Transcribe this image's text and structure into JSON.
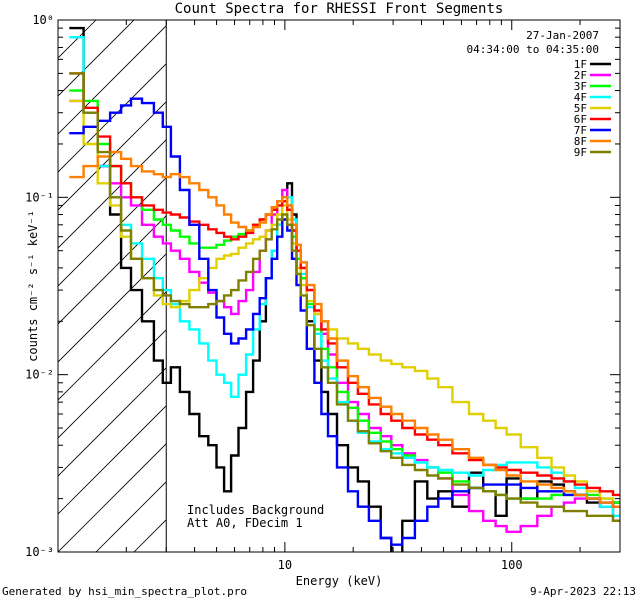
{
  "chart_data": {
    "type": "line",
    "title": "Count Spectra for RHESSI Front Segments",
    "xlabel": "Energy (keV)",
    "ylabel": "counts cm⁻² s⁻¹ keV⁻¹",
    "xscale": "log",
    "yscale": "log",
    "xlim": [
      1,
      300
    ],
    "ylim": [
      0.001,
      1
    ],
    "x_ticks": [
      {
        "value": 10,
        "label": "10"
      },
      {
        "value": 100,
        "label": "100"
      }
    ],
    "y_ticks": [
      {
        "value": 0.001,
        "label": "10⁻³"
      },
      {
        "value": 0.01,
        "label": "10⁻²"
      },
      {
        "value": 0.1,
        "label": "10⁻¹"
      },
      {
        "value": 1,
        "label": "10⁰"
      }
    ],
    "date": "27-Jan-2007",
    "time_range": "04:34:00 to 04:35:00",
    "annotations": [
      "Includes Background",
      "Att A0, FDecim 1"
    ],
    "attenuator_boundary_kev": 3,
    "legend_position": "top-right",
    "footer_left": "Generated by hsi_min_spectra_plot.pro",
    "footer_right": "9-Apr-2023 22:13",
    "series": [
      {
        "name": "1F",
        "color": "#000000",
        "x": [
          1.2,
          1.4,
          1.6,
          1.8,
          2.0,
          2.2,
          2.5,
          2.8,
          3.0,
          3.3,
          3.6,
          4.0,
          4.4,
          4.8,
          5.2,
          5.6,
          6.0,
          6.5,
          7.0,
          7.5,
          8.0,
          8.5,
          9.0,
          9.5,
          10.0,
          10.5,
          11.0,
          11.5,
          12,
          13,
          14,
          15,
          16,
          18,
          20,
          22,
          25,
          28,
          31,
          35,
          40,
          45,
          50,
          60,
          70,
          80,
          90,
          100,
          120,
          140,
          160,
          180,
          200,
          230,
          260,
          300
        ],
        "y": [
          0.9,
          0.3,
          0.15,
          0.08,
          0.04,
          0.03,
          0.02,
          0.012,
          0.009,
          0.011,
          0.008,
          0.006,
          0.0045,
          0.004,
          0.003,
          0.0022,
          0.0035,
          0.005,
          0.008,
          0.012,
          0.02,
          0.035,
          0.05,
          0.07,
          0.1,
          0.12,
          0.08,
          0.05,
          0.035,
          0.02,
          0.012,
          0.008,
          0.006,
          0.004,
          0.003,
          0.0025,
          0.0018,
          0.0012,
          0.0009,
          0.0015,
          0.0025,
          0.002,
          0.0022,
          0.0018,
          0.0028,
          0.0022,
          0.0016,
          0.0026,
          0.002,
          0.0025,
          0.0024,
          0.0022,
          0.0021,
          0.0019,
          0.0018,
          0.0019
        ]
      },
      {
        "name": "2F",
        "color": "#ff00ff",
        "x": [
          1.2,
          1.4,
          1.6,
          1.8,
          2.0,
          2.2,
          2.5,
          2.8,
          3.0,
          3.3,
          3.6,
          4.0,
          4.4,
          4.8,
          5.2,
          5.6,
          6.0,
          6.5,
          7.0,
          7.5,
          8.0,
          8.5,
          9.0,
          9.5,
          10.0,
          10.5,
          11.0,
          11.5,
          12,
          13,
          14,
          15,
          16,
          18,
          20,
          22,
          25,
          28,
          31,
          35,
          40,
          45,
          50,
          60,
          70,
          80,
          90,
          100,
          120,
          140,
          160,
          180,
          200,
          230,
          260,
          300
        ],
        "y": [
          0.35,
          0.3,
          0.15,
          0.12,
          0.1,
          0.09,
          0.07,
          0.06,
          0.055,
          0.05,
          0.045,
          0.038,
          0.033,
          0.029,
          0.026,
          0.024,
          0.022,
          0.026,
          0.03,
          0.038,
          0.05,
          0.065,
          0.08,
          0.095,
          0.11,
          0.09,
          0.065,
          0.05,
          0.04,
          0.03,
          0.022,
          0.017,
          0.013,
          0.009,
          0.007,
          0.006,
          0.005,
          0.0045,
          0.004,
          0.0036,
          0.0033,
          0.003,
          0.0026,
          0.0021,
          0.0017,
          0.0015,
          0.0014,
          0.0013,
          0.0014,
          0.0016,
          0.0018,
          0.0019,
          0.002,
          0.002,
          0.0018,
          0.0015
        ]
      },
      {
        "name": "3F",
        "color": "#00ff00",
        "x": [
          1.2,
          1.4,
          1.6,
          1.8,
          2.0,
          2.2,
          2.5,
          2.8,
          3.0,
          3.3,
          3.6,
          4.0,
          4.4,
          4.8,
          5.2,
          5.6,
          6.0,
          6.5,
          7.0,
          7.5,
          8.0,
          8.5,
          9.0,
          9.5,
          10.0,
          10.5,
          11.0,
          11.5,
          12,
          13,
          14,
          15,
          16,
          18,
          20,
          22,
          25,
          28,
          31,
          35,
          40,
          45,
          50,
          60,
          70,
          80,
          90,
          100,
          120,
          140,
          160,
          180,
          200,
          230,
          260,
          300
        ],
        "y": [
          0.4,
          0.35,
          0.2,
          0.15,
          0.12,
          0.1,
          0.085,
          0.075,
          0.07,
          0.065,
          0.06,
          0.055,
          0.052,
          0.052,
          0.054,
          0.057,
          0.06,
          0.062,
          0.065,
          0.07,
          0.075,
          0.08,
          0.085,
          0.09,
          0.095,
          0.085,
          0.06,
          0.045,
          0.035,
          0.025,
          0.018,
          0.014,
          0.011,
          0.008,
          0.0065,
          0.0055,
          0.0047,
          0.0042,
          0.0038,
          0.0035,
          0.0032,
          0.003,
          0.0028,
          0.0025,
          0.0023,
          0.0022,
          0.0021,
          0.002,
          0.002,
          0.002,
          0.0021,
          0.0021,
          0.0021,
          0.0021,
          0.002,
          0.0019
        ]
      },
      {
        "name": "4F",
        "color": "#00ffff",
        "x": [
          1.2,
          1.4,
          1.6,
          1.8,
          2.0,
          2.2,
          2.5,
          2.8,
          3.0,
          3.3,
          3.6,
          4.0,
          4.4,
          4.8,
          5.2,
          5.6,
          6.0,
          6.5,
          7.0,
          7.5,
          8.0,
          8.5,
          9.0,
          9.5,
          10.0,
          10.5,
          11.0,
          11.5,
          12,
          13,
          14,
          15,
          16,
          18,
          20,
          22,
          25,
          28,
          31,
          35,
          40,
          45,
          50,
          60,
          70,
          80,
          90,
          100,
          120,
          140,
          160,
          180,
          200,
          230,
          260,
          300
        ],
        "y": [
          0.8,
          0.3,
          0.15,
          0.1,
          0.07,
          0.055,
          0.045,
          0.035,
          0.03,
          0.025,
          0.02,
          0.018,
          0.015,
          0.012,
          0.01,
          0.009,
          0.0075,
          0.01,
          0.013,
          0.018,
          0.025,
          0.035,
          0.05,
          0.07,
          0.09,
          0.1,
          0.075,
          0.05,
          0.037,
          0.024,
          0.017,
          0.012,
          0.0095,
          0.007,
          0.0055,
          0.0047,
          0.0042,
          0.0038,
          0.0036,
          0.0034,
          0.0032,
          0.003,
          0.0029,
          0.0028,
          0.0027,
          0.0029,
          0.0031,
          0.0032,
          0.0032,
          0.003,
          0.0028,
          0.0025,
          0.0023,
          0.002,
          0.0018,
          0.0016
        ]
      },
      {
        "name": "5F",
        "color": "#e0d000",
        "x": [
          1.2,
          1.4,
          1.6,
          1.8,
          2.0,
          2.2,
          2.5,
          2.8,
          3.0,
          3.3,
          3.6,
          4.0,
          4.4,
          4.8,
          5.2,
          5.6,
          6.0,
          6.5,
          7.0,
          7.5,
          8.0,
          8.5,
          9.0,
          9.5,
          10.0,
          10.5,
          11.0,
          11.5,
          12,
          13,
          14,
          15,
          16,
          18,
          20,
          22,
          25,
          28,
          31,
          35,
          40,
          45,
          50,
          60,
          70,
          80,
          90,
          100,
          120,
          140,
          160,
          180,
          200,
          230,
          260,
          300
        ],
        "y": [
          0.35,
          0.2,
          0.12,
          0.09,
          0.06,
          0.045,
          0.035,
          0.028,
          0.025,
          0.024,
          0.026,
          0.03,
          0.035,
          0.04,
          0.045,
          0.047,
          0.048,
          0.052,
          0.055,
          0.058,
          0.06,
          0.065,
          0.07,
          0.08,
          0.09,
          0.075,
          0.055,
          0.04,
          0.032,
          0.026,
          0.022,
          0.02,
          0.018,
          0.016,
          0.015,
          0.014,
          0.013,
          0.012,
          0.0115,
          0.011,
          0.0105,
          0.0095,
          0.0085,
          0.007,
          0.006,
          0.0055,
          0.005,
          0.0046,
          0.0039,
          0.0034,
          0.003,
          0.0027,
          0.0025,
          0.0022,
          0.002,
          0.0018
        ]
      },
      {
        "name": "6F",
        "color": "#ff0000",
        "x": [
          1.2,
          1.4,
          1.6,
          1.8,
          2.0,
          2.2,
          2.5,
          2.8,
          3.0,
          3.3,
          3.6,
          4.0,
          4.4,
          4.8,
          5.2,
          5.6,
          6.0,
          6.5,
          7.0,
          7.5,
          8.0,
          8.5,
          9.0,
          9.5,
          10.0,
          10.5,
          11.0,
          11.5,
          12,
          13,
          14,
          15,
          16,
          18,
          20,
          22,
          25,
          28,
          31,
          35,
          40,
          45,
          50,
          60,
          70,
          80,
          90,
          100,
          120,
          140,
          160,
          180,
          200,
          230,
          260,
          300
        ],
        "y": [
          0.5,
          0.32,
          0.22,
          0.15,
          0.12,
          0.1,
          0.09,
          0.085,
          0.082,
          0.08,
          0.077,
          0.073,
          0.07,
          0.066,
          0.063,
          0.06,
          0.058,
          0.06,
          0.063,
          0.07,
          0.075,
          0.08,
          0.085,
          0.09,
          0.095,
          0.085,
          0.065,
          0.05,
          0.04,
          0.03,
          0.023,
          0.018,
          0.015,
          0.011,
          0.009,
          0.0078,
          0.0068,
          0.006,
          0.0055,
          0.005,
          0.0046,
          0.0043,
          0.004,
          0.0036,
          0.0033,
          0.0031,
          0.003,
          0.0029,
          0.0028,
          0.0027,
          0.0026,
          0.0025,
          0.0024,
          0.0023,
          0.0022,
          0.0021
        ]
      },
      {
        "name": "7F",
        "color": "#0000ff",
        "x": [
          1.2,
          1.4,
          1.6,
          1.8,
          2.0,
          2.2,
          2.5,
          2.8,
          3.0,
          3.3,
          3.6,
          4.0,
          4.4,
          4.8,
          5.2,
          5.6,
          6.0,
          6.5,
          7.0,
          7.5,
          8.0,
          8.5,
          9.0,
          9.5,
          10.0,
          10.5,
          11.0,
          11.5,
          12,
          13,
          14,
          15,
          16,
          18,
          20,
          22,
          25,
          28,
          31,
          35,
          40,
          45,
          50,
          60,
          70,
          80,
          90,
          100,
          120,
          140,
          160,
          180,
          200,
          230,
          260,
          300
        ],
        "y": [
          0.23,
          0.25,
          0.27,
          0.3,
          0.33,
          0.36,
          0.34,
          0.3,
          0.25,
          0.17,
          0.11,
          0.07,
          0.045,
          0.03,
          0.021,
          0.017,
          0.015,
          0.016,
          0.018,
          0.022,
          0.027,
          0.035,
          0.045,
          0.06,
          0.075,
          0.065,
          0.045,
          0.032,
          0.023,
          0.014,
          0.009,
          0.006,
          0.0045,
          0.003,
          0.0022,
          0.0018,
          0.0015,
          0.0012,
          0.0011,
          0.0012,
          0.0015,
          0.0018,
          0.002,
          0.0022,
          0.0023,
          0.0024,
          0.0024,
          0.0024,
          0.0023,
          0.0022,
          0.0022,
          0.0021,
          0.0021,
          0.002,
          0.0019,
          0.0018
        ]
      },
      {
        "name": "8F",
        "color": "#ff8000",
        "x": [
          1.2,
          1.4,
          1.6,
          1.8,
          2.0,
          2.2,
          2.5,
          2.8,
          3.0,
          3.3,
          3.6,
          4.0,
          4.4,
          4.8,
          5.2,
          5.6,
          6.0,
          6.5,
          7.0,
          7.5,
          8.0,
          8.5,
          9.0,
          9.5,
          10.0,
          10.5,
          11.0,
          11.5,
          12,
          13,
          14,
          15,
          16,
          18,
          20,
          22,
          25,
          28,
          31,
          35,
          40,
          45,
          50,
          60,
          70,
          80,
          90,
          100,
          120,
          140,
          160,
          180,
          200,
          230,
          260,
          300
        ],
        "y": [
          0.13,
          0.15,
          0.17,
          0.18,
          0.165,
          0.15,
          0.14,
          0.135,
          0.13,
          0.135,
          0.13,
          0.12,
          0.11,
          0.1,
          0.09,
          0.08,
          0.072,
          0.068,
          0.065,
          0.068,
          0.072,
          0.08,
          0.088,
          0.095,
          0.1,
          0.09,
          0.07,
          0.054,
          0.043,
          0.032,
          0.025,
          0.02,
          0.016,
          0.012,
          0.0098,
          0.0085,
          0.0074,
          0.0066,
          0.006,
          0.0055,
          0.005,
          0.0046,
          0.0043,
          0.0038,
          0.0034,
          0.0031,
          0.0029,
          0.0027,
          0.0025,
          0.0024,
          0.0023,
          0.0022,
          0.0021,
          0.002,
          0.0019,
          0.0018
        ]
      },
      {
        "name": "9F",
        "color": "#808000",
        "x": [
          1.2,
          1.4,
          1.6,
          1.8,
          2.0,
          2.2,
          2.5,
          2.8,
          3.0,
          3.3,
          3.6,
          4.0,
          4.4,
          4.8,
          5.2,
          5.6,
          6.0,
          6.5,
          7.0,
          7.5,
          8.0,
          8.5,
          9.0,
          9.5,
          10.0,
          10.5,
          11.0,
          11.5,
          12,
          13,
          14,
          15,
          16,
          18,
          20,
          22,
          25,
          28,
          31,
          35,
          40,
          45,
          50,
          60,
          70,
          80,
          90,
          100,
          120,
          140,
          160,
          180,
          200,
          230,
          260,
          300
        ],
        "y": [
          0.5,
          0.3,
          0.18,
          0.1,
          0.065,
          0.045,
          0.035,
          0.03,
          0.028,
          0.026,
          0.025,
          0.024,
          0.024,
          0.025,
          0.026,
          0.028,
          0.03,
          0.034,
          0.038,
          0.045,
          0.05,
          0.058,
          0.066,
          0.075,
          0.08,
          0.07,
          0.05,
          0.037,
          0.028,
          0.019,
          0.014,
          0.011,
          0.009,
          0.0068,
          0.0055,
          0.0048,
          0.0041,
          0.0037,
          0.0034,
          0.0031,
          0.0029,
          0.0027,
          0.0026,
          0.0024,
          0.0023,
          0.0022,
          0.0021,
          0.002,
          0.0019,
          0.0018,
          0.0018,
          0.0017,
          0.0017,
          0.0016,
          0.0016,
          0.0015
        ]
      }
    ]
  }
}
